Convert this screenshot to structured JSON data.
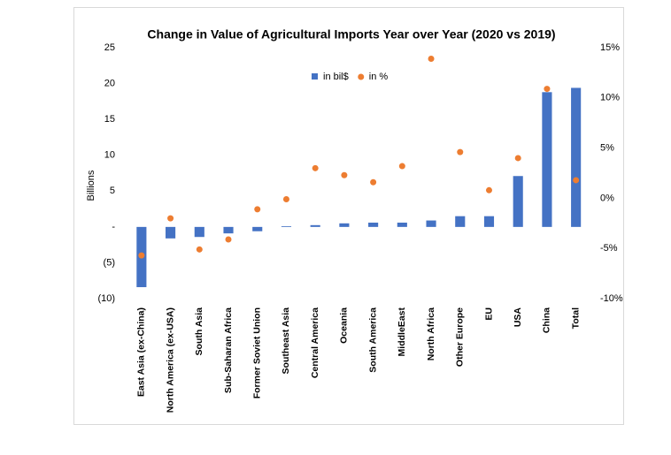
{
  "chart_data": {
    "type": "bar",
    "title": "Change in Value of Agricultural Imports Year over Year (2020 vs 2019)",
    "y_label": "Billions",
    "categories": [
      "East Asia (ex-China)",
      "North America (ex-USA)",
      "South Asia",
      "Sub-Saharan Africa",
      "Former Soviet Union",
      "Southeast Asia",
      "Central America",
      "Oceania",
      "South America",
      "MiddleEast",
      "North Africa",
      "Other Europe",
      "EU",
      "USA",
      "China",
      "Total"
    ],
    "series": [
      {
        "name": "in bil$",
        "type": "bar",
        "color": "#4472c4",
        "values": [
          -8.4,
          -1.6,
          -1.4,
          -0.9,
          -0.6,
          0.1,
          0.25,
          0.5,
          0.6,
          0.6,
          0.9,
          1.5,
          1.5,
          7.1,
          18.8,
          19.4
        ]
      },
      {
        "name": "in %",
        "type": "scatter",
        "axis": "y2",
        "color": "#ed7d31",
        "values": [
          -5.7,
          -2.0,
          -5.1,
          -4.1,
          -1.1,
          -0.1,
          3.0,
          2.3,
          1.6,
          3.2,
          13.9,
          4.6,
          0.8,
          4.0,
          10.9,
          1.8
        ]
      }
    ],
    "ylim": [
      -10,
      25
    ],
    "yticks": [
      {
        "value": -10,
        "label": "(10)"
      },
      {
        "value": -5,
        "label": "(5)"
      },
      {
        "value": 0,
        "label": "-"
      },
      5,
      10,
      15,
      20,
      25
    ],
    "y2lim": [
      -10,
      15
    ],
    "y2ticks": [
      {
        "value": -10,
        "label": "-10%"
      },
      {
        "value": -5,
        "label": "-5%"
      },
      {
        "value": 0,
        "label": "0%"
      },
      {
        "value": 5,
        "label": "5%"
      },
      {
        "value": 10,
        "label": "10%"
      },
      {
        "value": 15,
        "label": "15%"
      }
    ],
    "grid": false,
    "legend": "top"
  }
}
